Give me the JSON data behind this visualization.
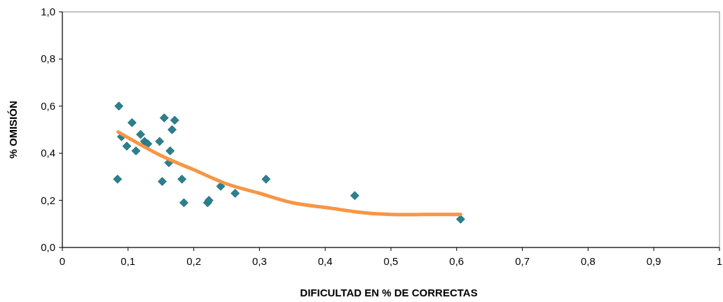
{
  "chart_data": {
    "type": "scatter",
    "xlabel": "DIFICULTAD EN % DE CORRECTAS",
    "ylabel": "% OMISIÓN",
    "xlim": [
      0,
      1
    ],
    "ylim": [
      0,
      1
    ],
    "xticks": [
      0,
      {
        "value": 0.1,
        "label": "0,1"
      },
      {
        "value": 0.2,
        "label": "0,2"
      },
      {
        "value": 0.3,
        "label": "0,3"
      },
      {
        "value": 0.4,
        "label": "0,4"
      },
      {
        "value": 0.5,
        "label": "0,5"
      },
      {
        "value": 0.6,
        "label": "0,6"
      },
      {
        "value": 0.7,
        "label": "0,7"
      },
      {
        "value": 0.8,
        "label": "0,8"
      },
      {
        "value": 0.9,
        "label": "0,9"
      },
      1
    ],
    "yticks": [
      {
        "value": 0,
        "label": "0,0"
      },
      {
        "value": 0.2,
        "label": "0,2"
      },
      {
        "value": 0.4,
        "label": "0,4"
      },
      {
        "value": 0.6,
        "label": "0,6"
      },
      {
        "value": 0.8,
        "label": "0,8"
      },
      {
        "value": 1,
        "label": "1,0"
      }
    ],
    "grid": false,
    "series": [
      {
        "color": "#2a8090",
        "marker": "diamond",
        "x": [
          0.086,
          0.09,
          0.106,
          0.098,
          0.112,
          0.119,
          0.125,
          0.13,
          0.084,
          0.148,
          0.155,
          0.171,
          0.167,
          0.164,
          0.162,
          0.152,
          0.182,
          0.185,
          0.221,
          0.223,
          0.241,
          0.263,
          0.31,
          0.445,
          0.606
        ],
        "values": [
          0.6,
          0.47,
          0.53,
          0.43,
          0.41,
          0.48,
          0.45,
          0.44,
          0.29,
          0.45,
          0.55,
          0.54,
          0.5,
          0.41,
          0.36,
          0.28,
          0.29,
          0.19,
          0.19,
          0.2,
          0.26,
          0.23,
          0.29,
          0.22,
          0.12
        ]
      },
      {
        "type": "line",
        "color": "#f79646",
        "line_style": "solid",
        "marker": "none",
        "x": [
          0.085,
          0.15,
          0.2,
          0.25,
          0.3,
          0.35,
          0.4,
          0.45,
          0.5,
          0.55,
          0.606
        ],
        "values": [
          0.49,
          0.39,
          0.33,
          0.27,
          0.23,
          0.19,
          0.17,
          0.15,
          0.14,
          0.14,
          0.14
        ]
      }
    ]
  }
}
